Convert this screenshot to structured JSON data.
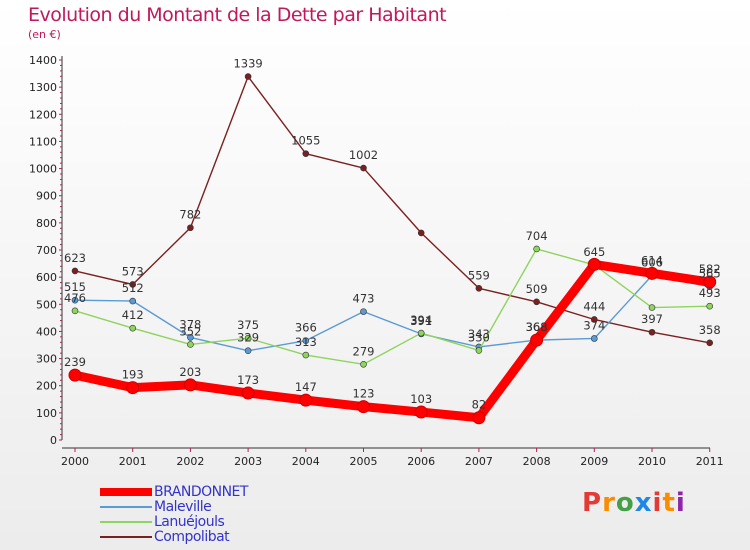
{
  "title": "Evolution du Montant de la Dette par Habitant",
  "subtitle": "(en €)",
  "logo_text": "Proxiti",
  "logo_colors": [
    "#e53935",
    "#fb8c00",
    "#43a047",
    "#1e88e5",
    "#e53935",
    "#fb8c00",
    "#8e24aa"
  ],
  "chart_data": {
    "type": "line",
    "title": "Evolution du Montant de la Dette par Habitant",
    "ylabel": "(en €)",
    "xlabel": "",
    "categories": [
      "2000",
      "2001",
      "2002",
      "2003",
      "2004",
      "2005",
      "2006",
      "2007",
      "2008",
      "2009",
      "2010",
      "2011"
    ],
    "ylim": [
      0,
      1400
    ],
    "yticks": [
      0,
      100,
      200,
      300,
      400,
      500,
      600,
      700,
      800,
      900,
      1000,
      1100,
      1200,
      1300,
      1400
    ],
    "grid": false,
    "legend": "bottom-left",
    "series": [
      {
        "name": "BRANDONNET",
        "color": "#ff0000",
        "values": [
          239,
          193,
          203,
          173,
          147,
          123,
          103,
          82,
          368,
          647,
          614,
          582
        ]
      },
      {
        "name": "Maleville",
        "color": "#5b9bd5",
        "values": [
          515,
          512,
          378,
          329,
          366,
          473,
          391,
          343,
          368,
          374,
          606,
          565
        ]
      },
      {
        "name": "Lanuéjouls",
        "color": "#8fd45e",
        "values": [
          476,
          412,
          352,
          375,
          313,
          279,
          394,
          330,
          704,
          645,
          488,
          493
        ]
      },
      {
        "name": "Compolibat",
        "color": "#7b2020",
        "values": [
          623,
          573,
          782,
          1339,
          1055,
          1002,
          763,
          559,
          509,
          444,
          397,
          358
        ]
      }
    ],
    "data_labels": [
      {
        "series": 0,
        "values": [
          239,
          193,
          203,
          173,
          147,
          123,
          103,
          82,
          368,
          null,
          614,
          582
        ]
      },
      {
        "series": 1,
        "values": [
          515,
          512,
          378,
          329,
          366,
          473,
          391,
          343,
          368,
          374,
          606,
          565
        ]
      },
      {
        "series": 2,
        "values": [
          476,
          412,
          352,
          375,
          313,
          279,
          394,
          330,
          704,
          645,
          null,
          493
        ]
      },
      {
        "series": 3,
        "values": [
          623,
          573,
          782,
          1339,
          1055,
          1002,
          null,
          559,
          509,
          444,
          397,
          358
        ]
      }
    ]
  }
}
